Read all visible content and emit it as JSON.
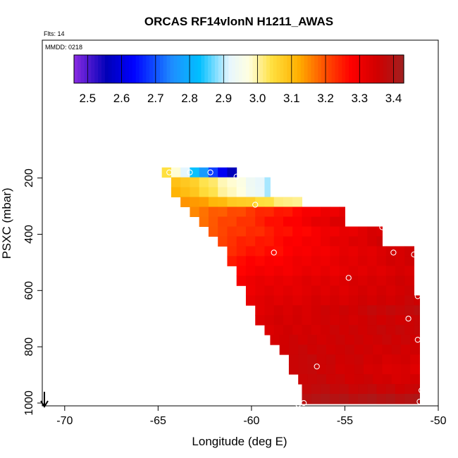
{
  "chart_data": {
    "type": "heatmap",
    "title": "ORCAS RF14vlonN H1211_AWAS",
    "flts_label": "Flts: 14",
    "mmdd_label": "MMDD: 0218",
    "xlabel": "Longitude (deg E)",
    "ylabel": "PSXC (mbar)",
    "xlim": [
      -71.2,
      -50
    ],
    "ylim": [
      1010,
      -290
    ],
    "x_ticks": [
      -70,
      -65,
      -60,
      -55,
      -50
    ],
    "x_tick_labels": [
      "-70",
      "-65",
      "-60",
      "-55",
      "-50"
    ],
    "y_ticks": [
      200,
      400,
      600,
      800,
      1000
    ],
    "y_tick_labels": [
      "200",
      "400",
      "600",
      "800",
      "1000"
    ],
    "colorbar": {
      "min": 2.46,
      "max": 3.43,
      "ticks": [
        2.5,
        2.6,
        2.7,
        2.8,
        2.9,
        3.0,
        3.1,
        3.2,
        3.3,
        3.4
      ],
      "tick_labels": [
        "2.5",
        "2.6",
        "2.7",
        "2.8",
        "2.9",
        "3.0",
        "3.1",
        "3.2",
        "3.3",
        "3.4"
      ],
      "stops": [
        [
          0.0,
          "#8a2be2"
        ],
        [
          0.1,
          "#0000b8"
        ],
        [
          0.18,
          "#0000ff"
        ],
        [
          0.3,
          "#1e90ff"
        ],
        [
          0.38,
          "#00bfff"
        ],
        [
          0.47,
          "#e6f6ff"
        ],
        [
          0.53,
          "#ffffe0"
        ],
        [
          0.6,
          "#ffe040"
        ],
        [
          0.68,
          "#ffb000"
        ],
        [
          0.76,
          "#ff5000"
        ],
        [
          0.84,
          "#ff0000"
        ],
        [
          0.92,
          "#d00000"
        ],
        [
          1.0,
          "#a02020"
        ]
      ]
    },
    "rows": [
      {
        "p": 180,
        "x0": -64.8,
        "x1": -60.8,
        "v0": 3.05,
        "v1": 2.55
      },
      {
        "p": 215,
        "x0": -64.3,
        "x1": -59.0,
        "v0": 3.1,
        "v1": 2.9
      },
      {
        "p": 250,
        "x0": -64.3,
        "x1": -59.0,
        "v0": 3.12,
        "v1": 2.9
      },
      {
        "p": 285,
        "x0": -63.8,
        "x1": -57.2,
        "v0": 3.15,
        "v1": 3.0
      },
      {
        "p": 320,
        "x0": -63.3,
        "x1": -55.0,
        "v0": 3.16,
        "v1": 3.32
      },
      {
        "p": 355,
        "x0": -62.8,
        "x1": -55.0,
        "v0": 3.18,
        "v1": 3.34
      },
      {
        "p": 390,
        "x0": -62.3,
        "x1": -53.0,
        "v0": 3.2,
        "v1": 3.34
      },
      {
        "p": 425,
        "x0": -61.8,
        "x1": -53.0,
        "v0": 3.22,
        "v1": 3.35
      },
      {
        "p": 460,
        "x0": -61.3,
        "x1": -51.3,
        "v0": 3.24,
        "v1": 3.35
      },
      {
        "p": 495,
        "x0": -61.3,
        "x1": -51.3,
        "v0": 3.26,
        "v1": 3.35
      },
      {
        "p": 530,
        "x0": -60.8,
        "x1": -51.3,
        "v0": 3.28,
        "v1": 3.34
      },
      {
        "p": 565,
        "x0": -60.8,
        "x1": -51.3,
        "v0": 3.3,
        "v1": 3.35
      },
      {
        "p": 600,
        "x0": -60.3,
        "x1": -51.3,
        "v0": 3.31,
        "v1": 3.35
      },
      {
        "p": 635,
        "x0": -60.3,
        "x1": -51.0,
        "v0": 3.32,
        "v1": 3.36
      },
      {
        "p": 670,
        "x0": -59.8,
        "x1": -51.0,
        "v0": 3.33,
        "v1": 3.38
      },
      {
        "p": 705,
        "x0": -59.8,
        "x1": -51.0,
        "v0": 3.34,
        "v1": 3.36
      },
      {
        "p": 740,
        "x0": -59.3,
        "x1": -51.0,
        "v0": 3.34,
        "v1": 3.37
      },
      {
        "p": 775,
        "x0": -59.0,
        "x1": -51.0,
        "v0": 3.35,
        "v1": 3.36
      },
      {
        "p": 810,
        "x0": -58.5,
        "x1": -51.0,
        "v0": 3.36,
        "v1": 3.35
      },
      {
        "p": 845,
        "x0": -58.0,
        "x1": -51.0,
        "v0": 3.37,
        "v1": 3.34
      },
      {
        "p": 880,
        "x0": -58.0,
        "x1": -51.0,
        "v0": 3.37,
        "v1": 3.33
      },
      {
        "p": 915,
        "x0": -57.5,
        "x1": -51.0,
        "v0": 3.37,
        "v1": 3.34
      },
      {
        "p": 950,
        "x0": -57.3,
        "x1": -51.0,
        "v0": 3.38,
        "v1": 3.36
      },
      {
        "p": 985,
        "x0": -57.3,
        "x1": -51.0,
        "v0": 3.4,
        "v1": 3.4
      }
    ],
    "points": [
      {
        "x": -64.4,
        "p": 180
      },
      {
        "x": -63.3,
        "p": 180
      },
      {
        "x": -62.2,
        "p": 180
      },
      {
        "x": -60.8,
        "p": 195
      },
      {
        "x": -59.8,
        "p": 295
      },
      {
        "x": -53.0,
        "p": 375
      },
      {
        "x": -58.8,
        "p": 465
      },
      {
        "x": -52.4,
        "p": 465
      },
      {
        "x": -51.3,
        "p": 472
      },
      {
        "x": -54.8,
        "p": 555
      },
      {
        "x": -51.1,
        "p": 620
      },
      {
        "x": -51.6,
        "p": 700
      },
      {
        "x": -51.1,
        "p": 775
      },
      {
        "x": -56.5,
        "p": 870
      },
      {
        "x": -50.9,
        "p": 955
      },
      {
        "x": -51.0,
        "p": 995
      },
      {
        "x": -57.2,
        "p": 1000
      },
      {
        "x": -57.5,
        "p": 1004
      }
    ]
  }
}
